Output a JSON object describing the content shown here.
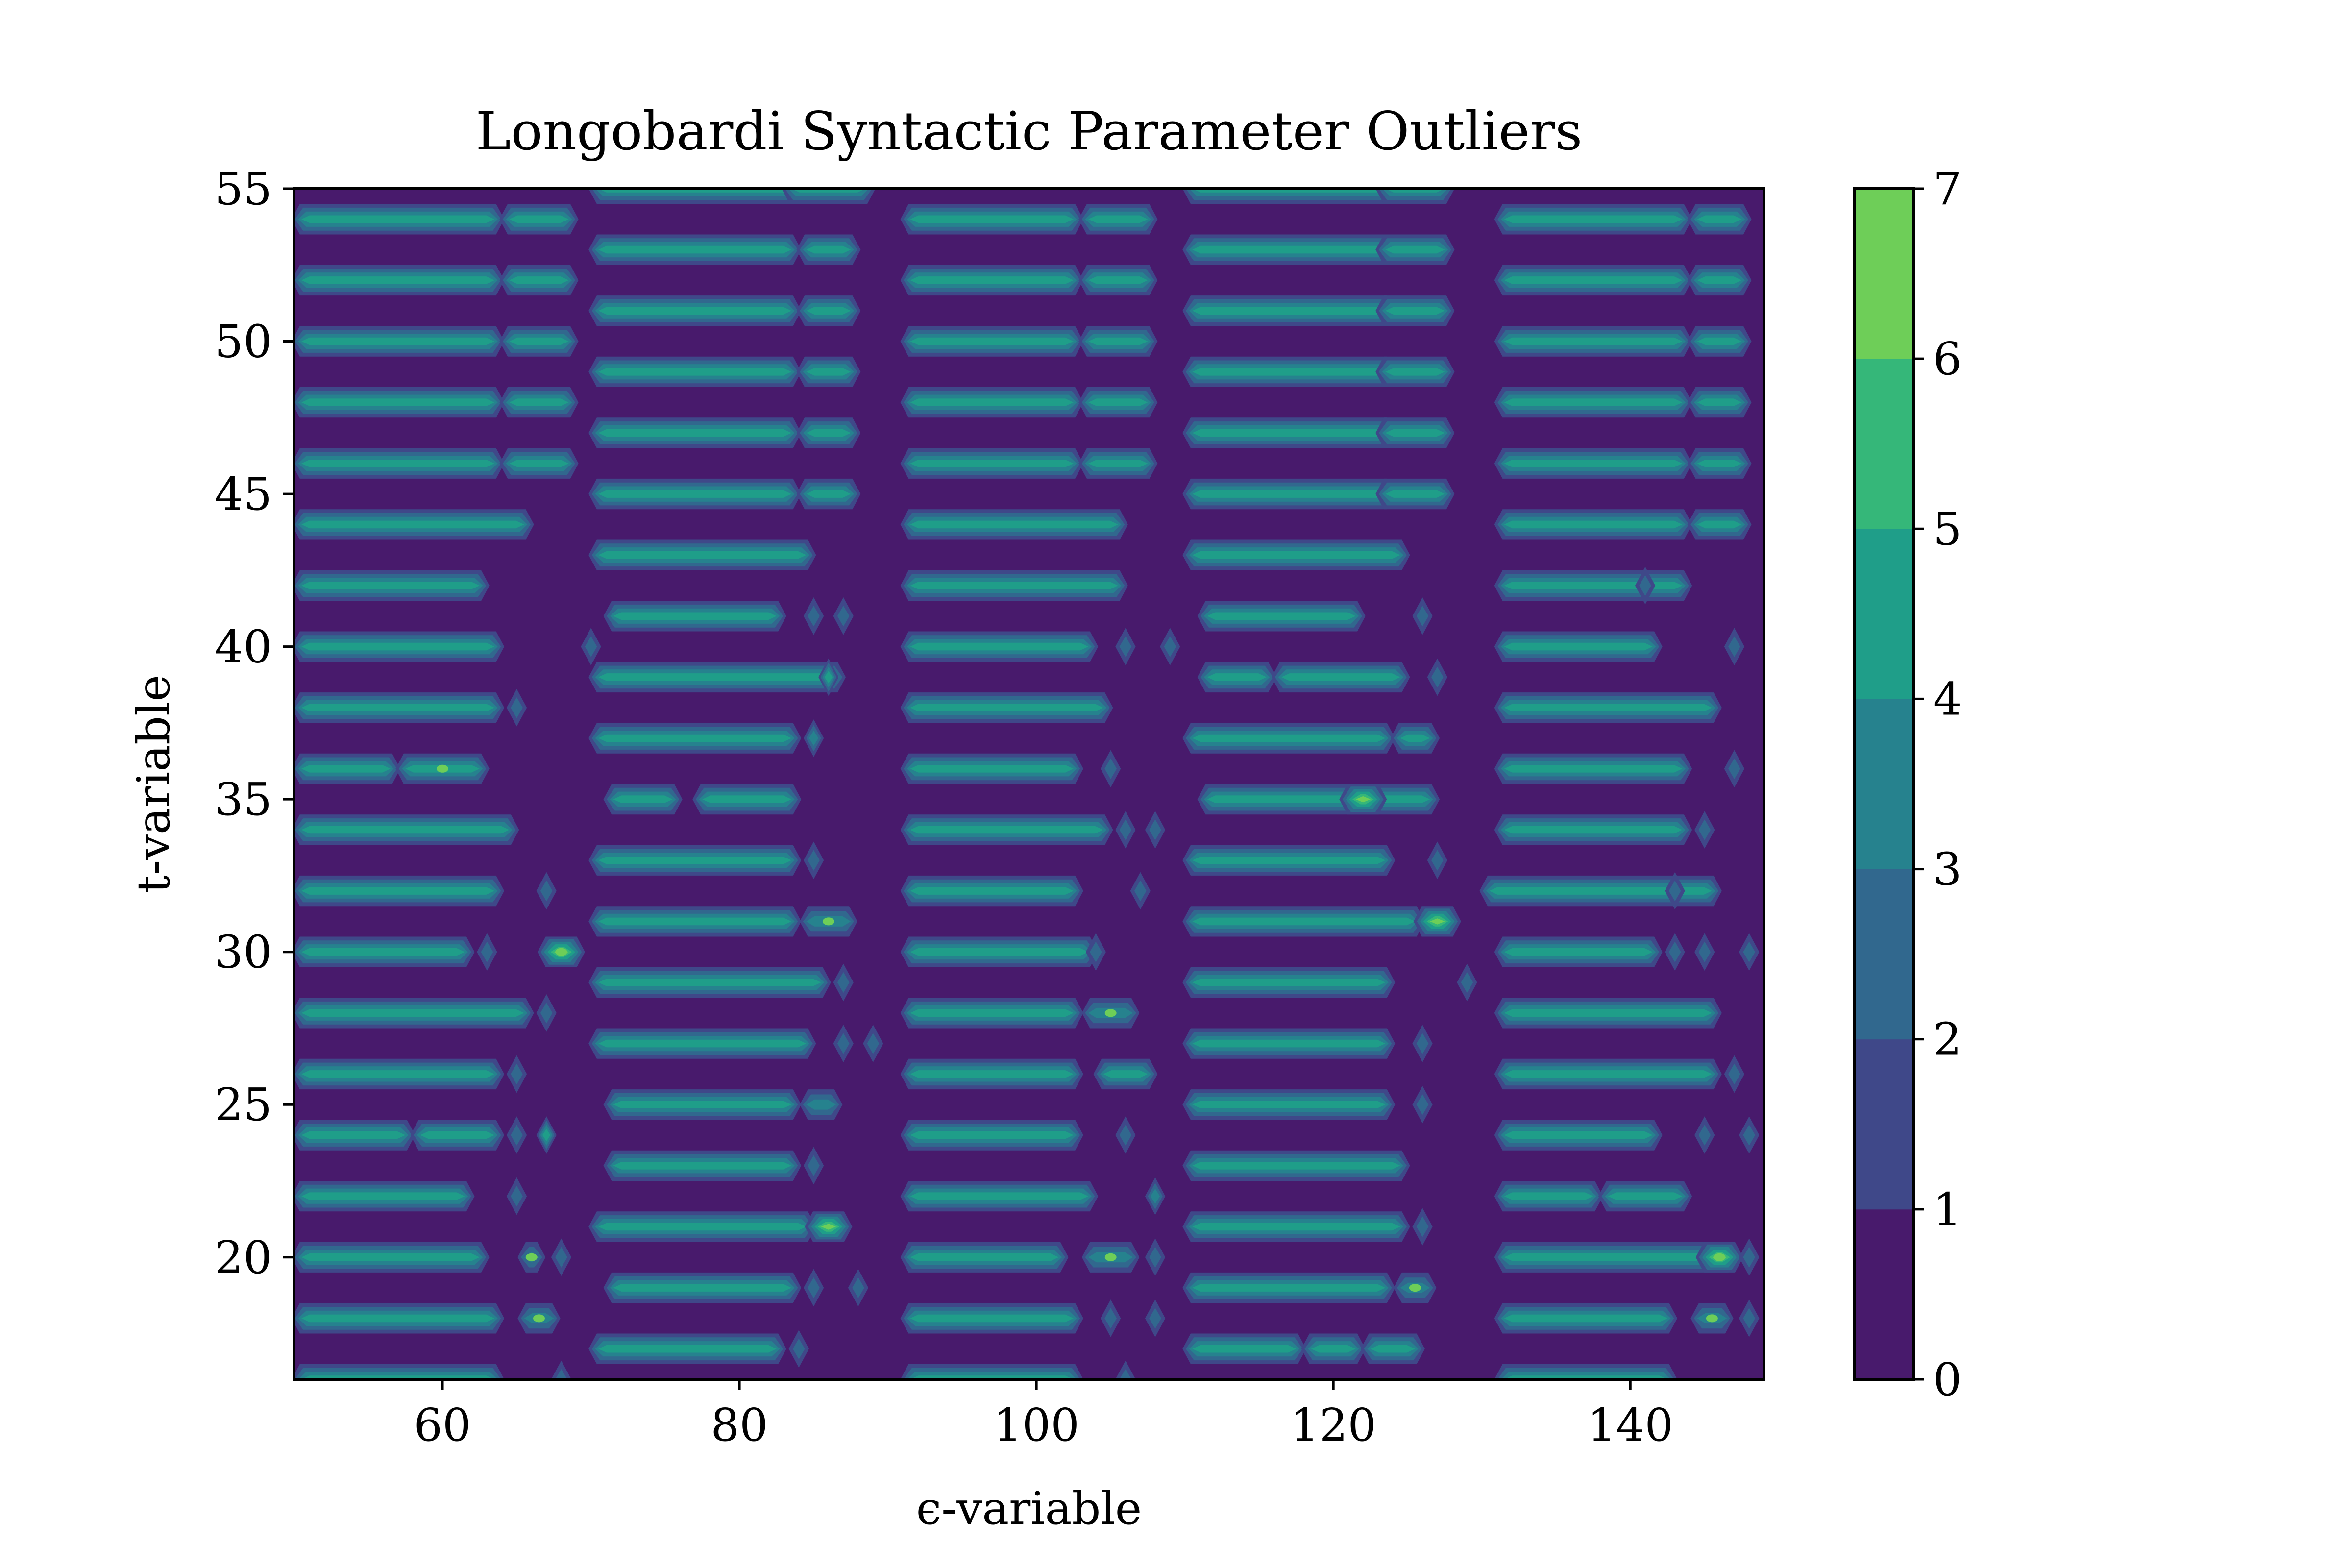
{
  "chart_data": {
    "type": "heatmap",
    "subtype": "filled-contour",
    "title": "Longobardi Syntactic Parameter Outliers",
    "xlabel": "ϵ-variable",
    "ylabel": "t-variable",
    "xlim": [
      50,
      149
    ],
    "ylim": [
      16,
      55
    ],
    "x_ticks": [
      "60",
      "80",
      "100",
      "120",
      "140"
    ],
    "x_tick_values": [
      60,
      80,
      100,
      120,
      140
    ],
    "y_ticks": [
      "20",
      "25",
      "30",
      "35",
      "40",
      "45",
      "50",
      "55"
    ],
    "y_tick_values": [
      20,
      25,
      30,
      35,
      40,
      45,
      50,
      55
    ],
    "colorbar": {
      "levels": [
        0,
        1,
        2,
        3,
        4,
        5,
        6,
        7
      ],
      "tick_labels": [
        "0",
        "1",
        "2",
        "3",
        "4",
        "5",
        "6",
        "7"
      ],
      "colors": [
        "#440154",
        "#46327e",
        "#365c8d",
        "#277f8e",
        "#1fa187",
        "#4ac16d",
        "#a0da39",
        "#fde725"
      ],
      "band_colors": [
        "#481a6c",
        "#3f4889",
        "#31688e",
        "#26828e",
        "#1f9e89",
        "#35b779",
        "#6ece58",
        "#cde11d"
      ]
    },
    "colormap": "viridis",
    "grid": false,
    "column_blocks": [
      {
        "x_start": 51,
        "x_end": 70,
        "rows": "even t (16-54)"
      },
      {
        "x_start": 70,
        "x_end": 90,
        "rows": "odd t (17-55)"
      },
      {
        "x_start": 90,
        "x_end": 110,
        "rows": "even t (16-54)"
      },
      {
        "x_start": 110,
        "x_end": 130,
        "rows": "odd t (17-55)"
      },
      {
        "x_start": 130,
        "x_end": 149,
        "rows": "even t (16-54)"
      }
    ],
    "streaks": [
      [
        51,
        63,
        54,
        4
      ],
      [
        65,
        68,
        54,
        4
      ],
      [
        51,
        63,
        52,
        4
      ],
      [
        65,
        68,
        52,
        4
      ],
      [
        51,
        63,
        50,
        4
      ],
      [
        65,
        68,
        50,
        4
      ],
      [
        51,
        63,
        48,
        4
      ],
      [
        65,
        68,
        48,
        4
      ],
      [
        51,
        63,
        46,
        4
      ],
      [
        65,
        68,
        46,
        4
      ],
      [
        51,
        65,
        44,
        4
      ],
      [
        51,
        62,
        42,
        4
      ],
      [
        51,
        63,
        40,
        4
      ],
      [
        51,
        63,
        38,
        4
      ],
      [
        51,
        56,
        36,
        4
      ],
      [
        58,
        62,
        36,
        4.5
      ],
      [
        51,
        64,
        34,
        4
      ],
      [
        51,
        63,
        32,
        4
      ],
      [
        51,
        61,
        30,
        4
      ],
      [
        68,
        68,
        30,
        6.5
      ],
      [
        51,
        65,
        28,
        4
      ],
      [
        51,
        63,
        26,
        4
      ],
      [
        51,
        57,
        24,
        4
      ],
      [
        59,
        63,
        24,
        4
      ],
      [
        51,
        61,
        22,
        4
      ],
      [
        51,
        62,
        20,
        4
      ],
      [
        66,
        66,
        20,
        3.5
      ],
      [
        51,
        63,
        18,
        4
      ],
      [
        66,
        67,
        18,
        3.5
      ],
      [
        51,
        63,
        16,
        4
      ],
      [
        71,
        83,
        55,
        4
      ],
      [
        84,
        88,
        55,
        4
      ],
      [
        71,
        83,
        53,
        4
      ],
      [
        85,
        87,
        53,
        4
      ],
      [
        71,
        83,
        51,
        4
      ],
      [
        85,
        87,
        51,
        4
      ],
      [
        71,
        83,
        49,
        4
      ],
      [
        85,
        87,
        49,
        4
      ],
      [
        71,
        83,
        47,
        4
      ],
      [
        85,
        87,
        47,
        4
      ],
      [
        71,
        83,
        45,
        4
      ],
      [
        85,
        87,
        45,
        4
      ],
      [
        71,
        84,
        43,
        4
      ],
      [
        72,
        82,
        41,
        4
      ],
      [
        71,
        86,
        39,
        4
      ],
      [
        71,
        83,
        37,
        4
      ],
      [
        72,
        75,
        35,
        4
      ],
      [
        78,
        83,
        35,
        4
      ],
      [
        71,
        83,
        33,
        4
      ],
      [
        71,
        83,
        31,
        4
      ],
      [
        85,
        87,
        31,
        3.5
      ],
      [
        71,
        85,
        29,
        4
      ],
      [
        71,
        84,
        27,
        4
      ],
      [
        72,
        83,
        25,
        4
      ],
      [
        85,
        86,
        25,
        3
      ],
      [
        72,
        83,
        23,
        4
      ],
      [
        71,
        84,
        21,
        4
      ],
      [
        86,
        86,
        21,
        6
      ],
      [
        72,
        83,
        19,
        4
      ],
      [
        71,
        82,
        17,
        4
      ],
      [
        92,
        102,
        54,
        4
      ],
      [
        104,
        107,
        54,
        4
      ],
      [
        92,
        102,
        52,
        4
      ],
      [
        104,
        107,
        52,
        4
      ],
      [
        92,
        102,
        50,
        4
      ],
      [
        104,
        107,
        50,
        4
      ],
      [
        92,
        102,
        48,
        4
      ],
      [
        104,
        107,
        48,
        4
      ],
      [
        92,
        102,
        46,
        4
      ],
      [
        104,
        107,
        46,
        4
      ],
      [
        92,
        105,
        44,
        4
      ],
      [
        92,
        105,
        42,
        4
      ],
      [
        92,
        103,
        40,
        4
      ],
      [
        92,
        104,
        38,
        4
      ],
      [
        92,
        102,
        36,
        4
      ],
      [
        92,
        104,
        34,
        4
      ],
      [
        92,
        102,
        32,
        4
      ],
      [
        92,
        103,
        30,
        4
      ],
      [
        92,
        102,
        28,
        4
      ],
      [
        104,
        106,
        28,
        3.5
      ],
      [
        92,
        102,
        26,
        4
      ],
      [
        105,
        107,
        26,
        4
      ],
      [
        92,
        102,
        24,
        4
      ],
      [
        92,
        103,
        22,
        4
      ],
      [
        92,
        101,
        20,
        4
      ],
      [
        104,
        106,
        20,
        3.5
      ],
      [
        92,
        102,
        18,
        4
      ],
      [
        92,
        102,
        16,
        4
      ],
      [
        111,
        123,
        55,
        4
      ],
      [
        124,
        127,
        55,
        4
      ],
      [
        111,
        123,
        53,
        4
      ],
      [
        124,
        127,
        53,
        4
      ],
      [
        111,
        123,
        51,
        4
      ],
      [
        124,
        127,
        51,
        4
      ],
      [
        111,
        123,
        49,
        4
      ],
      [
        124,
        127,
        49,
        4
      ],
      [
        111,
        123,
        47,
        4
      ],
      [
        124,
        127,
        47,
        4
      ],
      [
        111,
        123,
        45,
        4
      ],
      [
        124,
        127,
        45,
        4
      ],
      [
        111,
        124,
        43,
        4
      ],
      [
        112,
        121,
        41,
        4
      ],
      [
        112,
        115,
        39,
        4
      ],
      [
        117,
        124,
        39,
        4
      ],
      [
        111,
        123,
        37,
        4
      ],
      [
        125,
        126,
        37,
        4
      ],
      [
        112,
        126,
        35,
        4
      ],
      [
        122,
        122,
        35,
        6
      ],
      [
        111,
        123,
        33,
        4
      ],
      [
        111,
        125,
        31,
        4
      ],
      [
        127,
        127,
        31,
        6
      ],
      [
        111,
        123,
        29,
        4
      ],
      [
        111,
        123,
        27,
        4
      ],
      [
        111,
        123,
        25,
        4
      ],
      [
        111,
        124,
        23,
        4
      ],
      [
        111,
        124,
        21,
        4
      ],
      [
        111,
        123,
        19,
        4
      ],
      [
        125,
        126,
        19,
        3.5
      ],
      [
        111,
        117,
        17,
        4
      ],
      [
        119,
        121,
        17,
        4
      ],
      [
        123,
        125,
        17,
        4
      ],
      [
        132,
        143,
        54,
        4
      ],
      [
        145,
        147,
        54,
        4
      ],
      [
        132,
        143,
        52,
        4
      ],
      [
        145,
        147,
        52,
        4
      ],
      [
        132,
        143,
        50,
        4
      ],
      [
        145,
        147,
        50,
        4
      ],
      [
        132,
        143,
        48,
        4
      ],
      [
        145,
        147,
        48,
        4
      ],
      [
        132,
        143,
        46,
        4
      ],
      [
        145,
        147,
        46,
        4
      ],
      [
        132,
        143,
        44,
        4
      ],
      [
        145,
        147,
        44,
        4
      ],
      [
        132,
        143,
        42,
        4
      ],
      [
        132,
        141,
        40,
        4
      ],
      [
        132,
        145,
        38,
        4
      ],
      [
        132,
        143,
        36,
        4
      ],
      [
        132,
        143,
        34,
        4
      ],
      [
        131,
        145,
        32,
        4
      ],
      [
        132,
        141,
        30,
        4
      ],
      [
        132,
        145,
        28,
        4
      ],
      [
        132,
        145,
        26,
        4
      ],
      [
        132,
        141,
        24,
        4
      ],
      [
        132,
        137,
        22,
        4
      ],
      [
        139,
        143,
        22,
        4
      ],
      [
        132,
        146,
        20,
        4
      ],
      [
        146,
        146,
        20,
        6.5
      ],
      [
        132,
        142,
        18,
        4
      ],
      [
        145,
        146,
        18,
        3.5
      ],
      [
        132,
        142,
        16,
        4
      ]
    ],
    "spikes": [
      [
        70,
        40,
        1.5
      ],
      [
        65,
        38,
        2
      ],
      [
        67,
        32,
        2
      ],
      [
        63,
        30,
        2
      ],
      [
        67,
        28,
        1.5
      ],
      [
        65,
        26,
        2
      ],
      [
        65,
        24,
        2
      ],
      [
        67,
        24,
        4
      ],
      [
        65,
        22,
        2
      ],
      [
        68,
        20,
        1.5
      ],
      [
        68,
        16,
        2
      ],
      [
        85,
        41,
        2
      ],
      [
        87,
        41,
        2
      ],
      [
        86,
        39,
        4
      ],
      [
        85,
        37,
        3
      ],
      [
        85,
        33,
        2
      ],
      [
        87,
        29,
        2
      ],
      [
        89,
        27,
        1.5
      ],
      [
        87,
        27,
        2
      ],
      [
        85,
        23,
        1.5
      ],
      [
        85,
        19,
        2
      ],
      [
        88,
        19,
        2
      ],
      [
        84,
        17,
        2
      ],
      [
        106,
        40,
        2
      ],
      [
        109,
        40,
        1.5
      ],
      [
        105,
        36,
        1.5
      ],
      [
        106,
        34,
        2
      ],
      [
        108,
        34,
        2
      ],
      [
        107,
        32,
        2
      ],
      [
        104,
        30,
        2
      ],
      [
        106,
        24,
        2
      ],
      [
        108,
        22,
        3
      ],
      [
        108,
        20,
        1.5
      ],
      [
        105,
        18,
        2
      ],
      [
        108,
        18,
        2
      ],
      [
        106,
        16,
        1.5
      ],
      [
        126,
        41,
        2
      ],
      [
        127,
        39,
        2
      ],
      [
        127,
        33,
        2
      ],
      [
        129,
        29,
        2
      ],
      [
        126,
        27,
        2
      ],
      [
        126,
        25,
        2
      ],
      [
        126,
        21,
        2
      ],
      [
        141,
        42,
        2
      ],
      [
        147,
        40,
        2
      ],
      [
        147,
        36,
        1.5
      ],
      [
        145,
        34,
        2
      ],
      [
        143,
        32,
        2
      ],
      [
        143,
        30,
        2
      ],
      [
        145,
        30,
        2
      ],
      [
        148,
        30,
        2
      ],
      [
        147,
        26,
        2
      ],
      [
        145,
        24,
        2
      ],
      [
        148,
        24,
        2
      ],
      [
        148,
        20,
        1.5
      ],
      [
        148,
        18,
        2
      ]
    ]
  }
}
